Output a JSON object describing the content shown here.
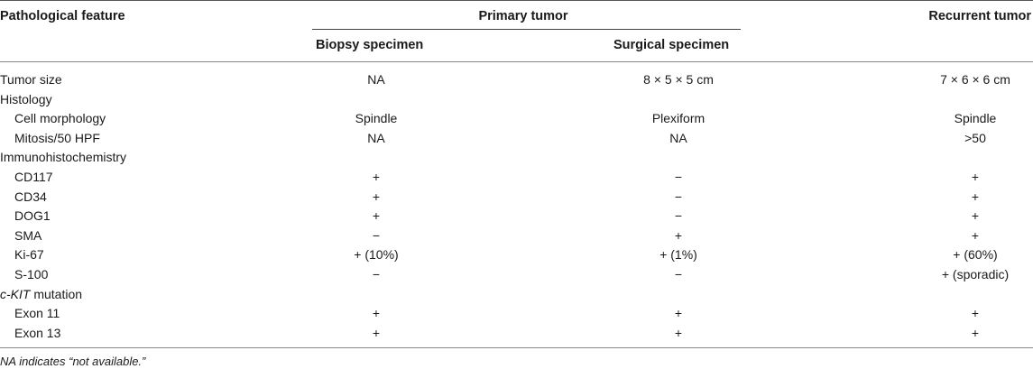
{
  "header": {
    "feature": "Pathological feature",
    "primary": "Primary tumor",
    "recurrent": "Recurrent tumor",
    "biopsy": "Biopsy specimen",
    "surgical": "Surgical specimen"
  },
  "rows": [
    {
      "label": "Tumor size",
      "indent": 0,
      "biopsy": "NA",
      "surgical": "8 × 5 × 5 cm",
      "recurrent": "7 × 6 × 6 cm"
    },
    {
      "label": "Histology",
      "indent": 0,
      "biopsy": "",
      "surgical": "",
      "recurrent": ""
    },
    {
      "label": "Cell morphology",
      "indent": 1,
      "biopsy": "Spindle",
      "surgical": "Plexiform",
      "recurrent": "Spindle"
    },
    {
      "label": "Mitosis/50 HPF",
      "indent": 1,
      "biopsy": "NA",
      "surgical": "NA",
      "recurrent": ">50"
    },
    {
      "label": "Immunohistochemistry",
      "indent": 0,
      "biopsy": "",
      "surgical": "",
      "recurrent": ""
    },
    {
      "label": "CD117",
      "indent": 1,
      "biopsy": "+",
      "surgical": "−",
      "recurrent": "+"
    },
    {
      "label": "CD34",
      "indent": 1,
      "biopsy": "+",
      "surgical": "−",
      "recurrent": "+"
    },
    {
      "label": "DOG1",
      "indent": 1,
      "biopsy": "+",
      "surgical": "−",
      "recurrent": "+"
    },
    {
      "label": "SMA",
      "indent": 1,
      "biopsy": "−",
      "surgical": "+",
      "recurrent": "+"
    },
    {
      "label": "Ki-67",
      "indent": 1,
      "biopsy": "+ (10%)",
      "surgical": "+ (1%)",
      "recurrent": "+ (60%)"
    },
    {
      "label": "S-100",
      "indent": 1,
      "biopsy": "−",
      "surgical": "−",
      "recurrent": "+ (sporadic)"
    },
    {
      "label": "c-KIT",
      "label_suffix": " mutation",
      "italic_prefix": true,
      "indent": 0,
      "biopsy": "",
      "surgical": "",
      "recurrent": ""
    },
    {
      "label": "Exon 11",
      "indent": 1,
      "biopsy": "+",
      "surgical": "+",
      "recurrent": "+"
    },
    {
      "label": "Exon 13",
      "indent": 1,
      "biopsy": "+",
      "surgical": "+",
      "recurrent": "+"
    }
  ],
  "footnote": "NA indicates “not available.”"
}
